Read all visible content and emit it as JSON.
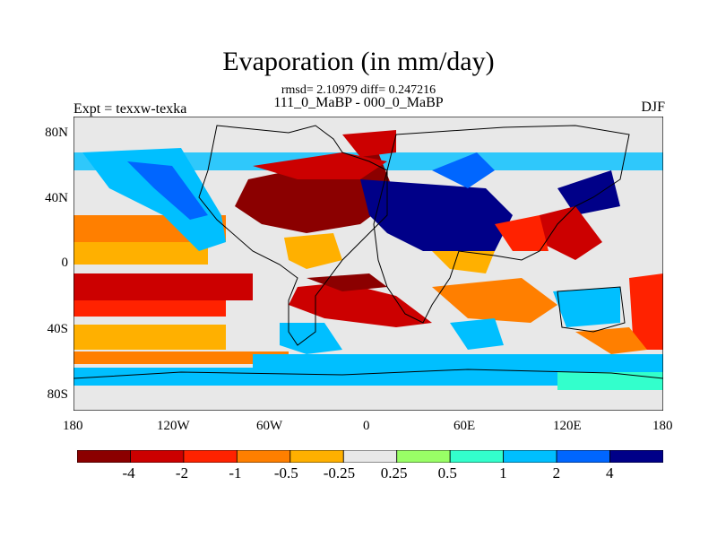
{
  "title": "Evaporation (in mm/day)",
  "stats_line": "rmsd= 2.10979 diff= 0.247216",
  "subtitle": "111_0_MaBP - 000_0_MaBP",
  "left_label": "Expt = texxw-texka",
  "right_label": "DJF",
  "x_ticks": [
    "180",
    "120W",
    "60W",
    "0",
    "60E",
    "120E",
    "180"
  ],
  "y_ticks": [
    "80N",
    "40N",
    "0",
    "40S",
    "80S"
  ],
  "colorbar": {
    "colors": [
      "#8b0000",
      "#cc0000",
      "#ff2200",
      "#ff7f00",
      "#ffb000",
      "#e8e8e8",
      "#99ff66",
      "#33ffcc",
      "#00bfff",
      "#0066ff",
      "#000088"
    ],
    "labels": [
      "-4",
      "-2",
      "-1",
      "-0.5",
      "-0.25",
      "0.25",
      "0.5",
      "1",
      "2",
      "4"
    ]
  }
}
